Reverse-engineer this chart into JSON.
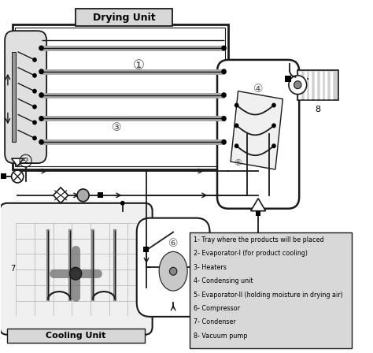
{
  "title": "Drying Unit",
  "cooling_label": "Cooling Unit",
  "legend_items": [
    "1- Tray where the products will be placed",
    "2- Evaporator-I (for product cooling)",
    "3- Heaters",
    "4- Condensing unit",
    "5- Evaporator-II (holding moisture in drying air)",
    "6- Compressor",
    "7- Condenser",
    "8- Vacuum pump"
  ],
  "lc": "#1a1a1a",
  "gray": "#888888",
  "lightgray": "#cccccc",
  "darkgray": "#555555"
}
